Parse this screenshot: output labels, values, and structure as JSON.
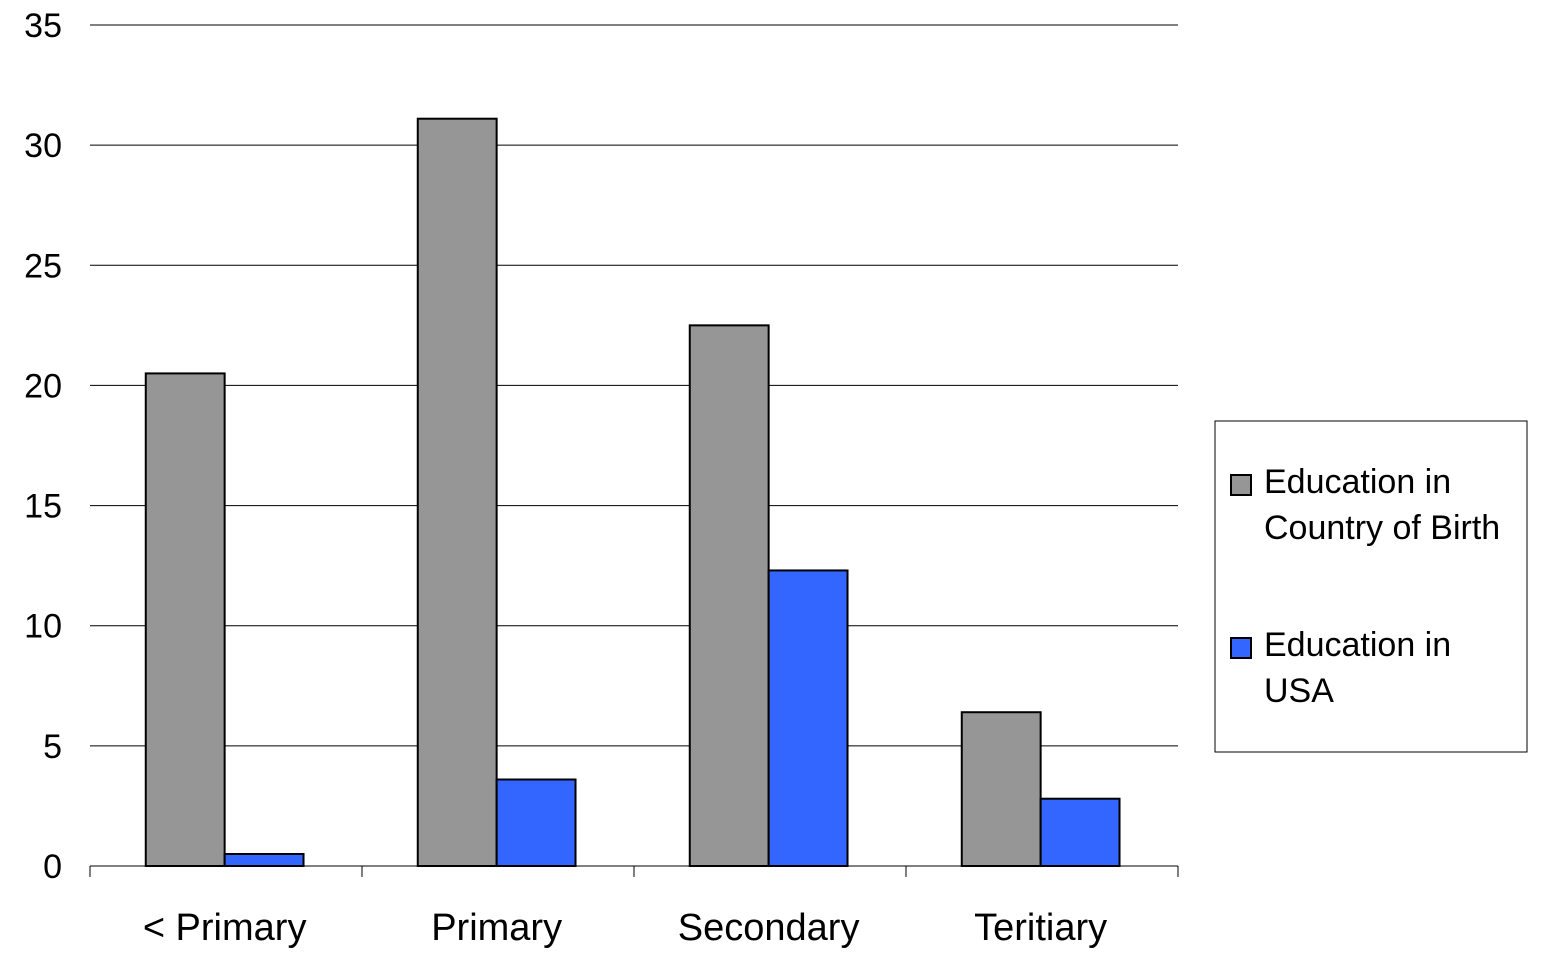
{
  "chart_data": {
    "type": "bar",
    "categories": [
      "< Primary",
      "Primary",
      "Secondary",
      "Teritiary"
    ],
    "series": [
      {
        "name": "Education in Country of Birth",
        "legend_lines": [
          "Education in",
          "Country of Birth"
        ],
        "color": "#969696",
        "values": [
          20.5,
          31.1,
          22.5,
          6.4
        ]
      },
      {
        "name": "Education in USA",
        "legend_lines": [
          "Education in",
          "USA"
        ],
        "color": "#3366FF",
        "values": [
          0.5,
          3.6,
          12.3,
          2.8
        ]
      }
    ],
    "yticks": [
      "0",
      "5",
      "10",
      "15",
      "20",
      "25",
      "30",
      "35"
    ],
    "ylim": [
      0,
      35
    ],
    "title": "",
    "xlabel": "",
    "ylabel": "",
    "grid": true,
    "legend_position": "right"
  }
}
